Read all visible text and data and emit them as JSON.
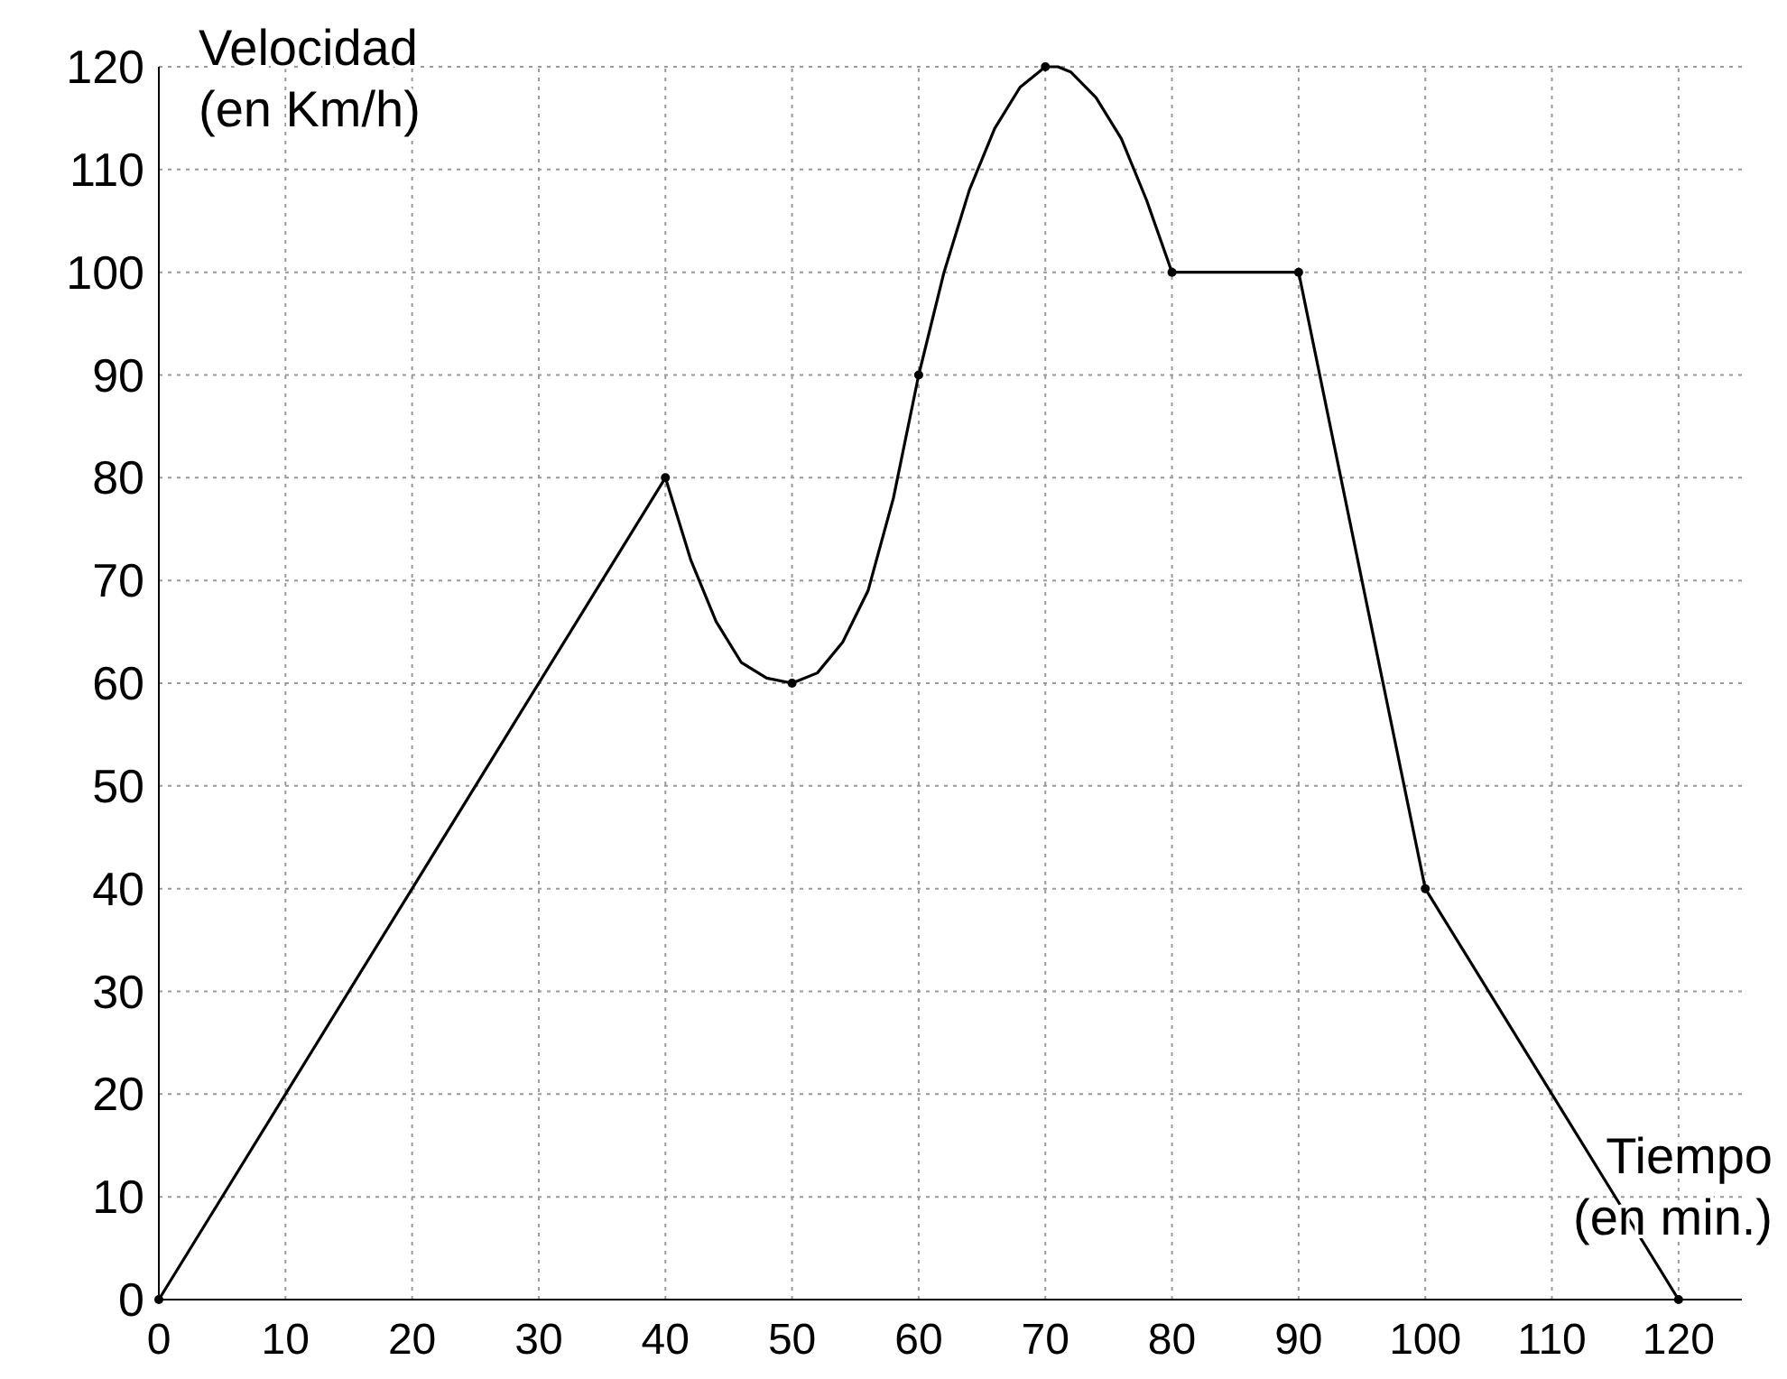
{
  "chart_data": {
    "type": "line",
    "xlabel": "Tiempo\n(en min.)",
    "ylabel": "Velocidad\n(en Km/h)",
    "xlim": [
      0,
      125
    ],
    "ylim": [
      0,
      120
    ],
    "xticks": [
      0,
      10,
      20,
      30,
      40,
      50,
      60,
      70,
      80,
      90,
      100,
      110,
      120
    ],
    "yticks": [
      0,
      10,
      20,
      30,
      40,
      50,
      60,
      70,
      80,
      90,
      100,
      110,
      120
    ],
    "grid": true,
    "series": [
      {
        "type": "line",
        "color": "#000000",
        "marker": "none",
        "x": [
          0,
          40,
          42,
          44,
          46,
          48,
          50,
          52,
          54,
          56,
          58,
          60,
          62,
          64,
          66,
          68,
          70,
          71,
          72,
          74,
          76,
          78,
          80,
          90,
          100,
          120
        ],
        "values": [
          0,
          80,
          72,
          66,
          62,
          60.5,
          60,
          61,
          64,
          69,
          78,
          90,
          100,
          108,
          114,
          118,
          120,
          120,
          119.5,
          117,
          113,
          107,
          100,
          100,
          40,
          0
        ]
      },
      {
        "type": "scatter",
        "color": "#000000",
        "marker": "circle",
        "x": [
          0,
          40,
          50,
          60,
          70,
          80,
          90,
          100,
          120
        ],
        "values": [
          0,
          80,
          60,
          90,
          120,
          100,
          100,
          40,
          0
        ]
      }
    ]
  }
}
